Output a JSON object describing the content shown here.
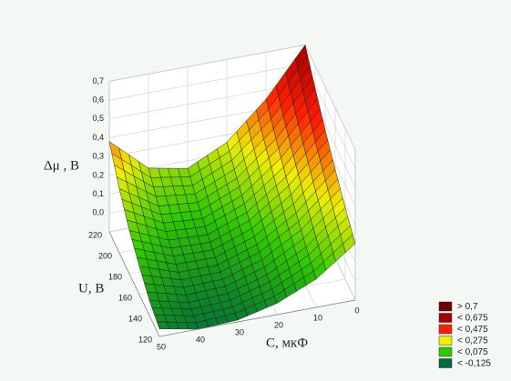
{
  "chart_data": {
    "type": "surface",
    "zlabel": "Δμ , В",
    "ylabel": "U, В",
    "xlabel": "C, мкФ",
    "x": [
      0,
      10,
      20,
      30,
      40,
      50
    ],
    "y": [
      120,
      140,
      160,
      180,
      200,
      220
    ],
    "z": [
      [
        0.2,
        0.05,
        -0.04,
        -0.09,
        -0.1,
        -0.06
      ],
      [
        0.28,
        0.11,
        0.0,
        -0.06,
        -0.07,
        -0.02
      ],
      [
        0.37,
        0.18,
        0.05,
        -0.02,
        -0.02,
        0.05
      ],
      [
        0.47,
        0.26,
        0.11,
        0.03,
        0.04,
        0.13
      ],
      [
        0.58,
        0.35,
        0.18,
        0.09,
        0.11,
        0.24
      ],
      [
        0.7,
        0.45,
        0.26,
        0.16,
        0.2,
        0.38
      ]
    ],
    "xlim": [
      0,
      50
    ],
    "ylim": [
      120,
      220
    ],
    "zlim": [
      -0.1,
      0.7
    ],
    "xticks": [
      0,
      10,
      20,
      30,
      40,
      50
    ],
    "yticks": [
      120,
      140,
      160,
      180,
      200,
      220
    ],
    "zticks": [
      {
        "value": 0,
        "label": "0,0"
      },
      {
        "value": 0.1,
        "label": "0,1"
      },
      {
        "value": 0.2,
        "label": "0,2"
      },
      {
        "value": 0.3,
        "label": "0,3"
      },
      {
        "value": 0.4,
        "label": "0,4"
      },
      {
        "value": 0.5,
        "label": "0,5"
      },
      {
        "value": 0.6,
        "label": "0,6"
      },
      {
        "value": 0.7,
        "label": "0,7"
      }
    ],
    "legend": [
      {
        "value": 0.7,
        "label": "> 0,7",
        "color": "#6e0000"
      },
      {
        "value": 0.675,
        "label": "< 0,675",
        "color": "#a80000"
      },
      {
        "value": 0.475,
        "label": "< 0,475",
        "color": "#ff2000"
      },
      {
        "value": 0.275,
        "label": "< 0,275",
        "color": "#eeee00"
      },
      {
        "value": 0.075,
        "label": "< 0,075",
        "color": "#30c800"
      },
      {
        "value": -0.125,
        "label": "< -0,125",
        "color": "#006a3a"
      }
    ]
  }
}
